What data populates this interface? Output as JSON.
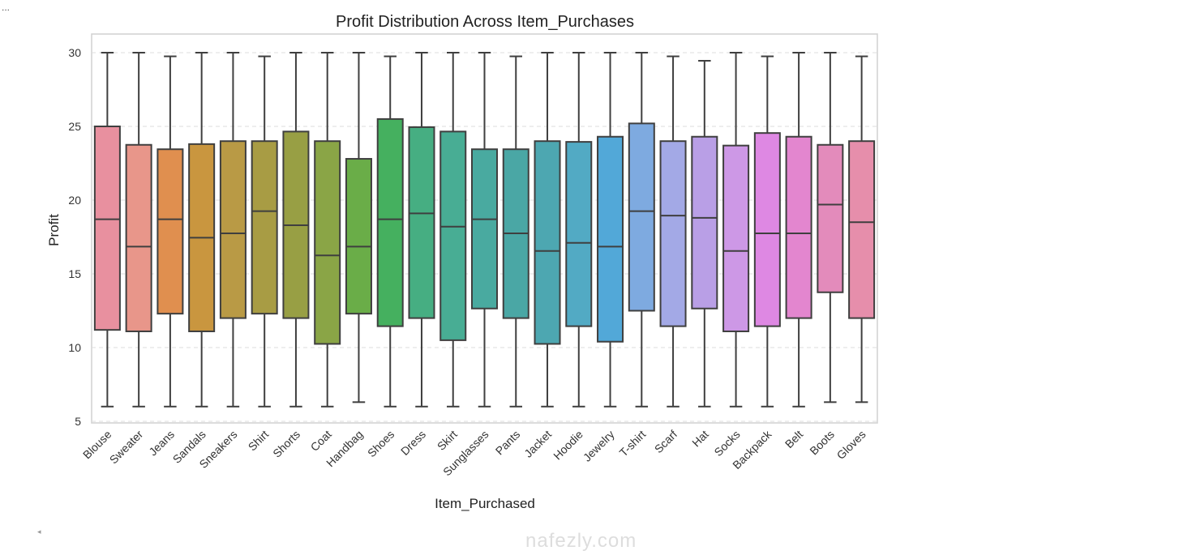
{
  "cell_marker": "...",
  "scroll_marker": "◂",
  "watermark": "nafezly.com",
  "chart_data": {
    "type": "box",
    "title": "Profit Distribution Across Item_Purchases",
    "xlabel": "Item_Purchased",
    "ylabel": "Profit",
    "ylim": [
      4.8,
      31
    ],
    "yticks": [
      5,
      10,
      15,
      20,
      25,
      30
    ],
    "grid": "y-dashed",
    "categories": [
      "Blouse",
      "Sweater",
      "Jeans",
      "Sandals",
      "Sneakers",
      "Shirt",
      "Shorts",
      "Coat",
      "Handbag",
      "Shoes",
      "Dress",
      "Skirt",
      "Sunglasses",
      "Pants",
      "Jacket",
      "Hoodie",
      "Jewelry",
      "T-shirt",
      "Scarf",
      "Hat",
      "Socks",
      "Backpack",
      "Belt",
      "Boots",
      "Gloves"
    ],
    "series": [
      {
        "name": "whisker_low",
        "values": [
          6,
          6,
          6,
          6,
          6,
          6,
          6,
          6,
          6.3,
          6,
          6,
          6,
          6,
          6,
          6,
          6,
          6,
          6,
          6,
          6,
          6,
          6,
          6,
          6.3,
          6.3
        ]
      },
      {
        "name": "q1",
        "values": [
          11.2,
          11.1,
          12.3,
          11.1,
          12,
          12.3,
          12,
          10.25,
          12.3,
          11.45,
          12,
          10.5,
          12.65,
          12,
          10.25,
          11.45,
          10.4,
          12.5,
          11.45,
          12.65,
          11.1,
          11.45,
          12,
          13.75,
          12
        ]
      },
      {
        "name": "median",
        "values": [
          18.7,
          16.85,
          18.7,
          17.45,
          17.75,
          19.25,
          18.3,
          16.25,
          16.85,
          18.7,
          19.1,
          18.2,
          18.7,
          17.75,
          16.55,
          17.1,
          16.85,
          19.25,
          18.95,
          18.8,
          16.55,
          17.75,
          17.75,
          19.7,
          18.5
        ]
      },
      {
        "name": "q3",
        "values": [
          25,
          23.75,
          23.45,
          23.8,
          24,
          24,
          24.65,
          24,
          22.8,
          25.5,
          24.95,
          24.65,
          23.45,
          23.45,
          24,
          23.95,
          24.3,
          25.2,
          24,
          24.3,
          23.7,
          24.55,
          24.3,
          23.75,
          24
        ]
      },
      {
        "name": "whisker_high",
        "values": [
          30,
          30,
          29.75,
          30,
          30,
          29.75,
          30,
          30,
          30,
          29.75,
          30,
          30,
          30,
          29.75,
          30,
          30,
          30,
          30,
          29.75,
          29.45,
          30,
          29.75,
          30,
          30,
          29.75
        ]
      }
    ],
    "colors": [
      "#e8909f",
      "#e8968a",
      "#e08f4f",
      "#c9963f",
      "#b99a45",
      "#a89c44",
      "#989f44",
      "#8aa546",
      "#6aad48",
      "#45b05f",
      "#46ae82",
      "#48ad94",
      "#49aaa0",
      "#4aa7a5",
      "#4da7b1",
      "#52aac4",
      "#52a8d8",
      "#7eaae0",
      "#a3a9e6",
      "#b99fe6",
      "#cd98e6",
      "#de88e3",
      "#e386cf",
      "#e38bbb",
      "#e68eab"
    ]
  }
}
